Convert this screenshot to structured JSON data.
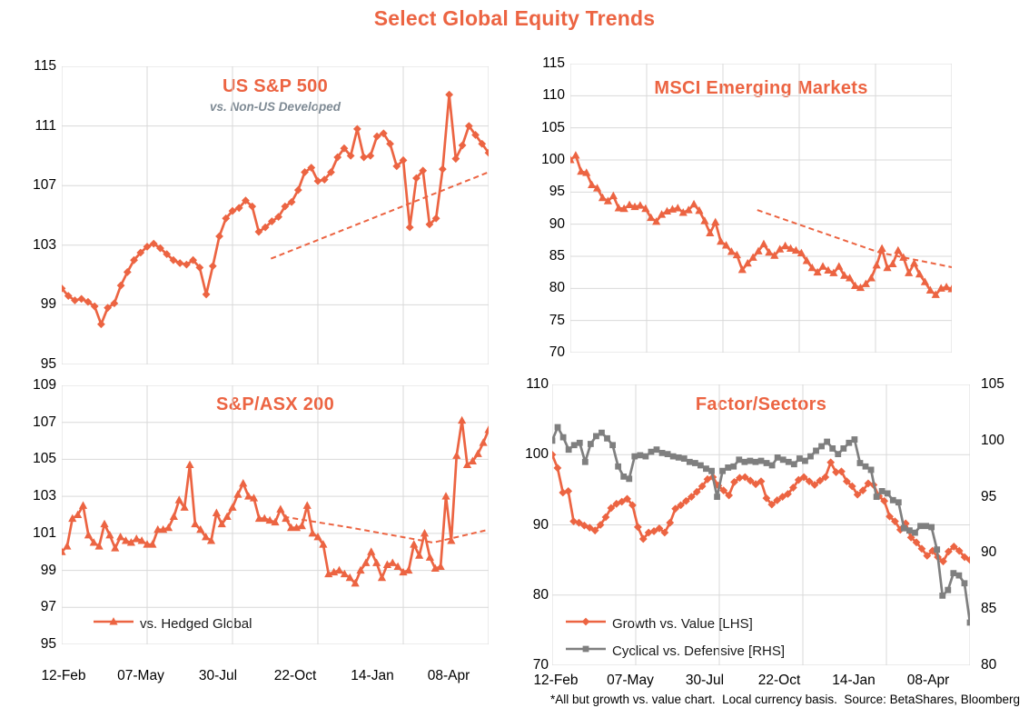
{
  "title": "Select Global Equity Trends",
  "footnote": "*All but growth vs. value chart.  Local currency basis.  Source: BetaShares, Bloomberg",
  "colors": {
    "accent_orange": "#EC6442",
    "series_gray": "#7F7F7F",
    "subtitle_gray": "#7E8A94",
    "gridline": "#D9D9D9",
    "text": "#000000"
  },
  "chart_data": [
    {
      "id": "us-sp500",
      "type": "line",
      "title": "US S&P 500",
      "subtitle": "vs. Non-US Developed",
      "x_tick_labels": null,
      "y_axis": {
        "min": 95,
        "max": 115,
        "ticks": [
          115,
          111,
          107,
          103,
          99,
          95
        ]
      },
      "series": [
        {
          "name": "US S&P 500 vs. Non-US Developed",
          "axis": "left",
          "color": "#EC6442",
          "marker": "diamond",
          "values": [
            100.1,
            99.6,
            99.3,
            99.4,
            99.2,
            98.9,
            97.7,
            98.8,
            99.1,
            100.3,
            101.2,
            102.0,
            102.5,
            102.9,
            103.1,
            102.8,
            102.4,
            102.0,
            101.8,
            101.7,
            102.0,
            101.5,
            99.7,
            101.6,
            103.6,
            104.8,
            105.3,
            105.5,
            106.0,
            105.6,
            103.9,
            104.2,
            104.6,
            104.9,
            105.6,
            105.9,
            106.7,
            107.9,
            108.2,
            107.3,
            107.4,
            107.9,
            108.9,
            109.5,
            109.0,
            110.8,
            108.9,
            109.0,
            110.3,
            110.5,
            109.8,
            108.3,
            108.7,
            104.2,
            107.5,
            108.0,
            104.4,
            104.8,
            108.1,
            113.1,
            108.8,
            109.7,
            111.0,
            110.4,
            109.8,
            109.2
          ]
        }
      ],
      "trendline": {
        "dashed": true,
        "color": "#EC6442",
        "points": [
          {
            "x_frac": 0.49,
            "value": 102.1
          },
          {
            "x_frac": 1.0,
            "value": 107.9
          }
        ]
      }
    },
    {
      "id": "msci-em",
      "type": "line",
      "title": "MSCI Emerging Markets",
      "subtitle": null,
      "x_tick_labels": null,
      "y_axis": {
        "min": 70,
        "max": 115,
        "ticks": [
          115,
          110,
          105,
          100,
          95,
          90,
          85,
          80,
          75,
          70
        ]
      },
      "series": [
        {
          "name": "MSCI Emerging Markets",
          "axis": "left",
          "color": "#EC6442",
          "marker": "triangle",
          "values": [
            100.0,
            100.7,
            98.2,
            98.0,
            96.1,
            95.6,
            94.1,
            93.6,
            94.4,
            92.5,
            92.4,
            93.0,
            92.7,
            92.9,
            92.4,
            91.0,
            90.4,
            91.5,
            92.0,
            92.3,
            92.5,
            91.8,
            92.2,
            93.1,
            92.1,
            90.5,
            88.6,
            90.3,
            87.3,
            86.7,
            85.7,
            85.2,
            82.9,
            83.9,
            84.8,
            85.8,
            86.9,
            85.6,
            85.1,
            86.1,
            86.6,
            86.2,
            85.9,
            85.5,
            84.3,
            83.2,
            82.5,
            83.4,
            82.8,
            82.4,
            83.4,
            82.0,
            81.6,
            80.4,
            80.1,
            80.7,
            81.6,
            83.6,
            86.2,
            83.2,
            83.8,
            85.9,
            84.8,
            82.4,
            83.9,
            82.2,
            81.0,
            79.7,
            79.0,
            80.0,
            80.2,
            79.9
          ]
        }
      ],
      "trendline": {
        "dashed": true,
        "color": "#EC6442",
        "points": [
          {
            "x_frac": 0.49,
            "value": 92.2
          },
          {
            "x_frac": 0.81,
            "value": 85.6
          },
          {
            "x_frac": 1.0,
            "value": 83.3
          }
        ]
      }
    },
    {
      "id": "asx-200",
      "type": "line",
      "title": "S&P/ASX 200",
      "subtitle": null,
      "x_tick_labels": [
        "12-Feb",
        "07-May",
        "30-Jul",
        "22-Oct",
        "14-Jan",
        "08-Apr"
      ],
      "y_axis": {
        "min": 95,
        "max": 109,
        "ticks": [
          109,
          107,
          105,
          103,
          101,
          99,
          97,
          95
        ]
      },
      "series": [
        {
          "name": "vs. Hedged Global",
          "axis": "left",
          "color": "#EC6442",
          "marker": "triangle",
          "values": [
            100.0,
            100.3,
            101.8,
            102.0,
            102.5,
            100.9,
            100.5,
            100.3,
            101.5,
            100.9,
            100.2,
            100.8,
            100.6,
            100.5,
            100.7,
            100.6,
            100.4,
            100.4,
            101.2,
            101.2,
            101.3,
            101.9,
            102.8,
            102.4,
            104.7,
            101.5,
            101.2,
            100.8,
            100.6,
            102.1,
            101.5,
            101.9,
            102.4,
            103.1,
            103.7,
            103.0,
            102.9,
            101.8,
            101.8,
            101.7,
            101.6,
            102.3,
            101.8,
            101.3,
            101.3,
            101.4,
            102.5,
            101.0,
            100.8,
            100.4,
            98.8,
            98.9,
            99.0,
            98.8,
            98.6,
            98.3,
            99.0,
            99.4,
            100.0,
            99.4,
            98.6,
            99.3,
            99.4,
            99.2,
            98.9,
            99.0,
            100.4,
            99.8,
            101.0,
            99.7,
            99.1,
            99.2,
            103.0,
            100.6,
            105.2,
            107.1,
            104.7,
            104.9,
            105.3,
            105.9,
            106.6
          ]
        }
      ],
      "trendline": {
        "dashed": true,
        "color": "#EC6442",
        "points": [
          {
            "x_frac": 0.52,
            "value": 101.9
          },
          {
            "x_frac": 0.68,
            "value": 101.3
          },
          {
            "x_frac": 0.87,
            "value": 100.5
          },
          {
            "x_frac": 1.0,
            "value": 101.2
          }
        ]
      }
    },
    {
      "id": "factor-sectors",
      "type": "line",
      "title": "Factor/Sectors",
      "subtitle": null,
      "x_tick_labels": [
        "12-Feb",
        "07-May",
        "30-Jul",
        "22-Oct",
        "14-Jan",
        "08-Apr"
      ],
      "y_axis": {
        "min": 70,
        "max": 110,
        "ticks": [
          110,
          100,
          90,
          80,
          70
        ]
      },
      "y_axis_right": {
        "min": 80,
        "max": 105,
        "ticks": [
          105,
          100,
          95,
          90,
          85,
          80
        ]
      },
      "series": [
        {
          "name": "Growth vs. Value [LHS]",
          "axis": "left",
          "color": "#EC6442",
          "marker": "diamond",
          "values": [
            100.0,
            98.1,
            94.6,
            94.8,
            90.5,
            90.3,
            89.9,
            89.6,
            89.2,
            90.0,
            91.1,
            92.4,
            93.0,
            93.3,
            93.7,
            92.8,
            89.7,
            88.0,
            88.9,
            89.1,
            89.5,
            88.9,
            90.3,
            92.3,
            92.8,
            93.4,
            94.0,
            94.7,
            95.5,
            96.5,
            96.8,
            95.6,
            94.9,
            94.2,
            96.1,
            96.7,
            96.8,
            96.3,
            95.8,
            96.2,
            93.8,
            92.9,
            93.5,
            94.0,
            94.4,
            95.3,
            96.4,
            96.8,
            96.2,
            95.7,
            96.3,
            96.8,
            98.9,
            97.5,
            97.6,
            96.2,
            95.5,
            94.3,
            94.9,
            95.9,
            95.7,
            94.1,
            93.4,
            91.2,
            90.5,
            89.3,
            90.2,
            88.2,
            87.5,
            86.6,
            85.6,
            86.3,
            85.4,
            84.8,
            86.2,
            86.9,
            86.3,
            85.4,
            85.0
          ]
        },
        {
          "name": "Cyclical vs. Defensive [RHS]",
          "axis": "right",
          "color": "#7F7F7F",
          "marker": "square",
          "values": [
            100.0,
            101.2,
            100.3,
            99.2,
            99.6,
            99.8,
            98.1,
            99.7,
            100.4,
            100.7,
            100.2,
            99.6,
            97.7,
            96.8,
            96.6,
            98.6,
            98.7,
            98.6,
            99.0,
            99.2,
            98.9,
            98.8,
            98.6,
            98.5,
            98.4,
            98.1,
            98.0,
            97.8,
            97.5,
            97.3,
            95.0,
            97.3,
            97.6,
            97.7,
            98.3,
            98.1,
            98.2,
            98.1,
            98.2,
            98.0,
            97.8,
            98.5,
            98.3,
            98.1,
            97.9,
            98.4,
            98.2,
            98.6,
            99.1,
            99.5,
            99.9,
            99.3,
            98.8,
            99.3,
            99.8,
            100.1,
            98.0,
            97.7,
            97.4,
            95.0,
            95.5,
            95.3,
            94.7,
            94.5,
            92.2,
            92.0,
            91.8,
            92.4,
            92.4,
            92.3,
            90.3,
            86.2,
            86.7,
            88.2,
            88.0,
            87.3,
            83.8
          ]
        }
      ],
      "trendline": null
    }
  ]
}
